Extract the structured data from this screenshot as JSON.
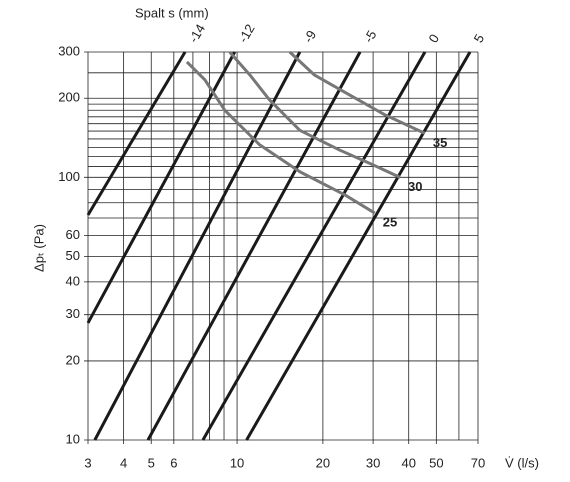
{
  "chart_data": {
    "type": "line",
    "title": "Spalt s (mm)",
    "y_label": "Δpₜ (Pa)",
    "x_label": "V̇ (l/s)",
    "xlog": true,
    "ylog": true,
    "grid": true,
    "xlim": [
      3,
      70
    ],
    "ylim": [
      10,
      300
    ],
    "xticks": [
      3,
      4,
      5,
      6,
      10,
      20,
      30,
      40,
      50,
      70
    ],
    "yticks": [
      10,
      20,
      30,
      40,
      50,
      60,
      100,
      200,
      300
    ],
    "xminor": [
      7,
      8,
      9,
      60
    ],
    "yminor": [
      70,
      80,
      90,
      110,
      120,
      130,
      140,
      150,
      160,
      170,
      180,
      190,
      250
    ],
    "series": [
      {
        "name": "-14",
        "color": "#1a1a1a",
        "x": [
          3,
          6.57
        ],
        "y": [
          71.9,
          300
        ]
      },
      {
        "name": "-12",
        "color": "#1a1a1a",
        "x": [
          3,
          9.81
        ],
        "y": [
          27.9,
          300
        ]
      },
      {
        "name": "-9",
        "color": "#1a1a1a",
        "x": [
          3.17,
          16.6
        ],
        "y": [
          10,
          300
        ]
      },
      {
        "name": "-5",
        "color": "#1a1a1a",
        "x": [
          4.87,
          27.0
        ],
        "y": [
          10,
          300
        ]
      },
      {
        "name": "0",
        "color": "#1a1a1a",
        "x": [
          7.59,
          45.6
        ],
        "y": [
          10,
          300
        ]
      },
      {
        "name": "5",
        "color": "#1a1a1a",
        "x": [
          10.8,
          65.6
        ],
        "y": [
          10,
          300
        ]
      },
      {
        "name": "25",
        "color": "#777777",
        "x": [
          6.67,
          7.71,
          9.06,
          12.0,
          16.6,
          23.9,
          30.4
        ],
        "y": [
          275,
          235,
          180,
          133,
          105,
          85.7,
          73.1
        ]
      },
      {
        "name": "30",
        "color": "#777777",
        "x": [
          9.42,
          11.1,
          13.0,
          16.6,
          22.9,
          29.2,
          37.3
        ],
        "y": [
          300,
          245,
          197,
          151,
          127,
          113,
          100
        ]
      },
      {
        "name": "35",
        "color": "#777777",
        "x": [
          15.3,
          18.7,
          24.8,
          33.0,
          45.6
        ],
        "y": [
          300,
          245,
          206,
          173,
          147
        ]
      }
    ]
  }
}
